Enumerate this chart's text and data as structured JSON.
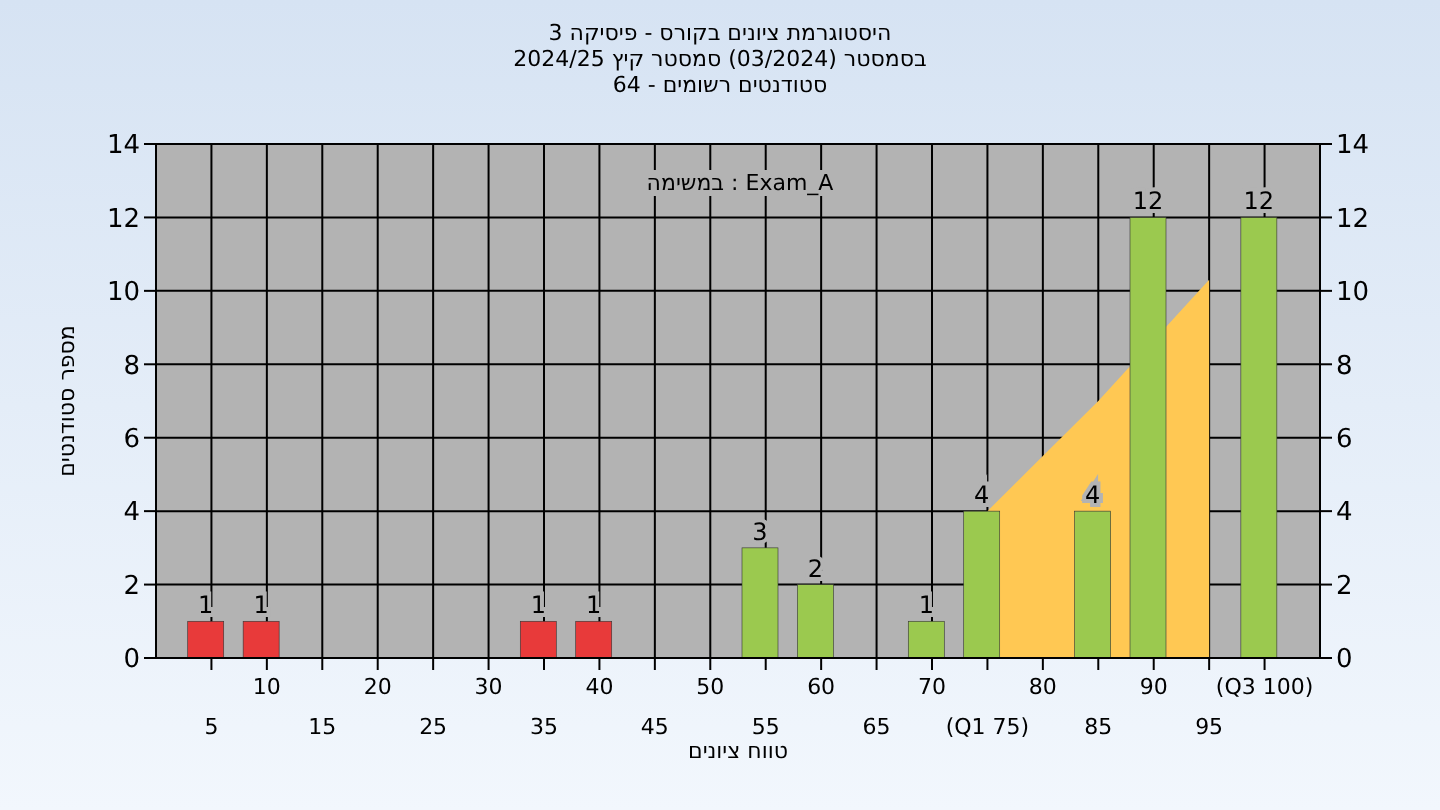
{
  "chart_data": {
    "type": "bar",
    "title": "היסטוגרמת ציונים בקורס - פיסיקה 3",
    "subtitle": "בסמסטר (03/2024) סמסטר קיץ 2024/25\nסטודנטים רשומים - 64",
    "xlabel": "טווח ציונים",
    "ylabel": "מספר סטודנטים",
    "annotations": [
      "במשימה : Exam_A"
    ],
    "categories": [
      "5",
      "10",
      "15",
      "20",
      "25",
      "30",
      "35",
      "40",
      "45",
      "50",
      "55",
      "60",
      "65",
      "70",
      "(Q1 75)",
      "80",
      "85",
      "90",
      "95",
      "(Q3 100)"
    ],
    "series": [
      {
        "type": "area",
        "color": "#ffc853",
        "values": [
          null,
          null,
          null,
          null,
          null,
          null,
          null,
          null,
          null,
          null,
          null,
          null,
          null,
          null,
          4,
          5.5,
          7,
          null,
          10.3,
          null
        ]
      },
      {
        "colors": [
          "#e83a3a",
          "#e83a3a",
          "#e83a3a",
          "#e83a3a",
          "#e83a3a",
          "#e83a3a",
          "#e83a3a",
          "#e83a3a",
          "#e83a3a",
          "#e83a3a",
          "#9bc94f",
          "#9bc94f",
          "#9bc94f",
          "#9bc94f",
          "#9bc94f",
          "#9bc94f",
          "#9bc94f",
          "#9bc94f",
          "#9bc94f",
          "#9bc94f"
        ],
        "values": [
          1,
          1,
          0,
          0,
          0,
          0,
          1,
          1,
          0,
          0,
          3,
          2,
          0,
          1,
          4,
          0,
          4,
          12,
          0,
          12
        ],
        "value_labels": [
          "1",
          "1",
          null,
          null,
          null,
          null,
          "1",
          "1",
          null,
          null,
          "3",
          "2",
          null,
          "1",
          "4",
          null,
          "4",
          "12",
          null,
          "12"
        ]
      }
    ],
    "ylim": [
      0,
      14
    ],
    "yticks": [
      0,
      2,
      4,
      6,
      8,
      10,
      12,
      14
    ],
    "y2lim": [
      0,
      14
    ],
    "y2ticks": [
      0,
      2,
      4,
      6,
      8,
      10,
      12,
      14
    ],
    "grid": true
  }
}
